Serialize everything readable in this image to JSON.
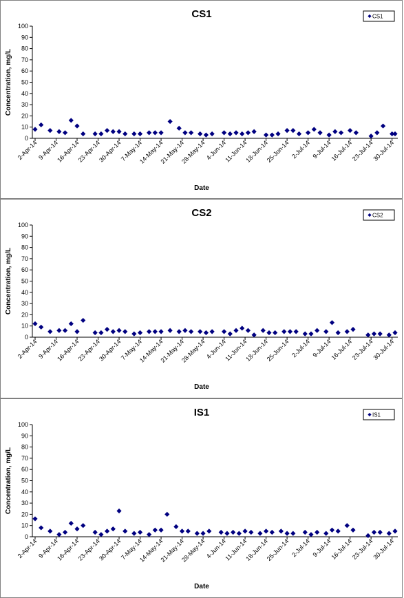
{
  "chart_data": [
    {
      "type": "scatter",
      "title": "CS1",
      "xlabel": "Date",
      "ylabel": "Concentration, mg/L",
      "ylim": [
        0,
        100
      ],
      "yticks": [
        0,
        10,
        20,
        30,
        40,
        50,
        60,
        70,
        80,
        90,
        100
      ],
      "xlim": [
        "2014-04-02",
        "2014-07-31"
      ],
      "xticks": [
        "2-Apr-14",
        "9-Apr-14",
        "16-Apr-14",
        "23-Apr-14",
        "30-Apr-14",
        "7-May-14",
        "14-May-14",
        "21-May-14",
        "28-May-14",
        "4-Jun-14",
        "11-Jun-14",
        "18-Jun-14",
        "25-Jun-14",
        "2-Jul-14",
        "9-Jul-14",
        "16-Jul-14",
        "23-Jul-14",
        "30-Jul-14"
      ],
      "grid": false,
      "legend_position": "top-right",
      "marker_color": "#000080",
      "series": [
        {
          "name": "CS1",
          "points": [
            [
              "2014-04-02",
              8
            ],
            [
              "2014-04-04",
              12
            ],
            [
              "2014-04-07",
              7
            ],
            [
              "2014-04-10",
              6
            ],
            [
              "2014-04-12",
              5
            ],
            [
              "2014-04-14",
              16
            ],
            [
              "2014-04-16",
              11
            ],
            [
              "2014-04-18",
              4
            ],
            [
              "2014-04-22",
              4
            ],
            [
              "2014-04-24",
              4
            ],
            [
              "2014-04-26",
              7
            ],
            [
              "2014-04-28",
              6
            ],
            [
              "2014-04-30",
              6
            ],
            [
              "2014-05-02",
              4
            ],
            [
              "2014-05-05",
              4
            ],
            [
              "2014-05-07",
              4
            ],
            [
              "2014-05-10",
              5
            ],
            [
              "2014-05-12",
              5
            ],
            [
              "2014-05-14",
              5
            ],
            [
              "2014-05-17",
              15
            ],
            [
              "2014-05-20",
              9
            ],
            [
              "2014-05-22",
              5
            ],
            [
              "2014-05-24",
              5
            ],
            [
              "2014-05-27",
              4
            ],
            [
              "2014-05-29",
              3
            ],
            [
              "2014-05-31",
              4
            ],
            [
              "2014-06-04",
              5
            ],
            [
              "2014-06-06",
              4
            ],
            [
              "2014-06-08",
              5
            ],
            [
              "2014-06-10",
              4
            ],
            [
              "2014-06-12",
              5
            ],
            [
              "2014-06-14",
              6
            ],
            [
              "2014-06-18",
              3
            ],
            [
              "2014-06-20",
              3
            ],
            [
              "2014-06-22",
              4
            ],
            [
              "2014-06-25",
              7
            ],
            [
              "2014-06-27",
              7
            ],
            [
              "2014-06-29",
              4
            ],
            [
              "2014-07-02",
              5
            ],
            [
              "2014-07-04",
              8
            ],
            [
              "2014-07-06",
              5
            ],
            [
              "2014-07-09",
              3
            ],
            [
              "2014-07-11",
              6
            ],
            [
              "2014-07-13",
              5
            ],
            [
              "2014-07-16",
              7
            ],
            [
              "2014-07-18",
              5
            ],
            [
              "2014-07-23",
              2
            ],
            [
              "2014-07-25",
              5
            ],
            [
              "2014-07-27",
              11
            ],
            [
              "2014-07-30",
              4
            ],
            [
              "2014-07-31",
              4
            ]
          ]
        }
      ]
    },
    {
      "type": "scatter",
      "title": "CS2",
      "xlabel": "Date",
      "ylabel": "Concentration, mg/L",
      "ylim": [
        0,
        100
      ],
      "yticks": [
        0,
        10,
        20,
        30,
        40,
        50,
        60,
        70,
        80,
        90,
        100
      ],
      "xlim": [
        "2014-04-02",
        "2014-07-31"
      ],
      "xticks": [
        "2-Apr-14",
        "9-Apr-14",
        "16-Apr-14",
        "23-Apr-14",
        "30-Apr-14",
        "7-May-14",
        "14-May-14",
        "21-May-14",
        "28-May-14",
        "4-Jun-14",
        "11-Jun-14",
        "18-Jun-14",
        "25-Jun-14",
        "2-Jul-14",
        "9-Jul-14",
        "16-Jul-14",
        "23-Jul-14",
        "30-Jul-14"
      ],
      "grid": false,
      "legend_position": "top-right",
      "marker_color": "#000080",
      "series": [
        {
          "name": "CS2",
          "points": [
            [
              "2014-04-02",
              12
            ],
            [
              "2014-04-04",
              9
            ],
            [
              "2014-04-07",
              5
            ],
            [
              "2014-04-10",
              6
            ],
            [
              "2014-04-12",
              6
            ],
            [
              "2014-04-14",
              12
            ],
            [
              "2014-04-16",
              5
            ],
            [
              "2014-04-18",
              15
            ],
            [
              "2014-04-22",
              4
            ],
            [
              "2014-04-24",
              4
            ],
            [
              "2014-04-26",
              7
            ],
            [
              "2014-04-28",
              5
            ],
            [
              "2014-04-30",
              6
            ],
            [
              "2014-05-02",
              5
            ],
            [
              "2014-05-05",
              3
            ],
            [
              "2014-05-07",
              4
            ],
            [
              "2014-05-10",
              5
            ],
            [
              "2014-05-12",
              5
            ],
            [
              "2014-05-14",
              5
            ],
            [
              "2014-05-17",
              6
            ],
            [
              "2014-05-20",
              5
            ],
            [
              "2014-05-22",
              6
            ],
            [
              "2014-05-24",
              5
            ],
            [
              "2014-05-27",
              5
            ],
            [
              "2014-05-29",
              4
            ],
            [
              "2014-05-31",
              5
            ],
            [
              "2014-06-04",
              5
            ],
            [
              "2014-06-06",
              3
            ],
            [
              "2014-06-08",
              6
            ],
            [
              "2014-06-10",
              8
            ],
            [
              "2014-06-12",
              6
            ],
            [
              "2014-06-14",
              2
            ],
            [
              "2014-06-17",
              6
            ],
            [
              "2014-06-19",
              4
            ],
            [
              "2014-06-21",
              4
            ],
            [
              "2014-06-24",
              5
            ],
            [
              "2014-06-26",
              5
            ],
            [
              "2014-06-28",
              5
            ],
            [
              "2014-07-01",
              3
            ],
            [
              "2014-07-03",
              3
            ],
            [
              "2014-07-05",
              6
            ],
            [
              "2014-07-08",
              5
            ],
            [
              "2014-07-10",
              13
            ],
            [
              "2014-07-12",
              4
            ],
            [
              "2014-07-15",
              5
            ],
            [
              "2014-07-17",
              7
            ],
            [
              "2014-07-22",
              2
            ],
            [
              "2014-07-24",
              3
            ],
            [
              "2014-07-26",
              3
            ],
            [
              "2014-07-29",
              2
            ],
            [
              "2014-07-31",
              4
            ]
          ]
        }
      ]
    },
    {
      "type": "scatter",
      "title": "IS1",
      "xlabel": "Date",
      "ylabel": "Concentration, mg/L",
      "ylim": [
        0,
        100
      ],
      "yticks": [
        0,
        10,
        20,
        30,
        40,
        50,
        60,
        70,
        80,
        90,
        100
      ],
      "xlim": [
        "2014-04-02",
        "2014-07-31"
      ],
      "xticks": [
        "2-Apr-14",
        "9-Apr-14",
        "16-Apr-14",
        "23-Apr-14",
        "30-Apr-14",
        "7-May-14",
        "14-May-14",
        "21-May-14",
        "28-May-14",
        "4-Jun-14",
        "11-Jun-14",
        "18-Jun-14",
        "25-Jun-14",
        "2-Jul-14",
        "9-Jul-14",
        "16-Jul-14",
        "23-Jul-14",
        "30-Jul-14"
      ],
      "grid": false,
      "legend_position": "top-right",
      "marker_color": "#000080",
      "series": [
        {
          "name": "IS1",
          "points": [
            [
              "2014-04-02",
              16
            ],
            [
              "2014-04-04",
              8
            ],
            [
              "2014-04-07",
              5
            ],
            [
              "2014-04-10",
              2
            ],
            [
              "2014-04-12",
              4
            ],
            [
              "2014-04-14",
              12
            ],
            [
              "2014-04-16",
              7
            ],
            [
              "2014-04-18",
              10
            ],
            [
              "2014-04-22",
              4
            ],
            [
              "2014-04-24",
              2
            ],
            [
              "2014-04-26",
              5
            ],
            [
              "2014-04-28",
              7
            ],
            [
              "2014-04-30",
              23
            ],
            [
              "2014-05-02",
              5
            ],
            [
              "2014-05-05",
              3
            ],
            [
              "2014-05-07",
              4
            ],
            [
              "2014-05-10",
              2
            ],
            [
              "2014-05-12",
              6
            ],
            [
              "2014-05-14",
              6
            ],
            [
              "2014-05-16",
              20
            ],
            [
              "2014-05-19",
              9
            ],
            [
              "2014-05-21",
              5
            ],
            [
              "2014-05-23",
              5
            ],
            [
              "2014-05-26",
              3
            ],
            [
              "2014-05-28",
              3
            ],
            [
              "2014-05-30",
              5
            ],
            [
              "2014-06-03",
              4
            ],
            [
              "2014-06-05",
              3
            ],
            [
              "2014-06-07",
              4
            ],
            [
              "2014-06-09",
              3
            ],
            [
              "2014-06-11",
              5
            ],
            [
              "2014-06-13",
              4
            ],
            [
              "2014-06-16",
              3
            ],
            [
              "2014-06-18",
              5
            ],
            [
              "2014-06-20",
              4
            ],
            [
              "2014-06-23",
              5
            ],
            [
              "2014-06-25",
              3
            ],
            [
              "2014-06-27",
              3
            ],
            [
              "2014-07-01",
              4
            ],
            [
              "2014-07-03",
              2
            ],
            [
              "2014-07-05",
              4
            ],
            [
              "2014-07-08",
              3
            ],
            [
              "2014-07-10",
              6
            ],
            [
              "2014-07-12",
              5
            ],
            [
              "2014-07-15",
              10
            ],
            [
              "2014-07-17",
              6
            ],
            [
              "2014-07-22",
              1
            ],
            [
              "2014-07-24",
              4
            ],
            [
              "2014-07-26",
              4
            ],
            [
              "2014-07-29",
              3
            ],
            [
              "2014-07-31",
              5
            ]
          ]
        }
      ]
    }
  ]
}
